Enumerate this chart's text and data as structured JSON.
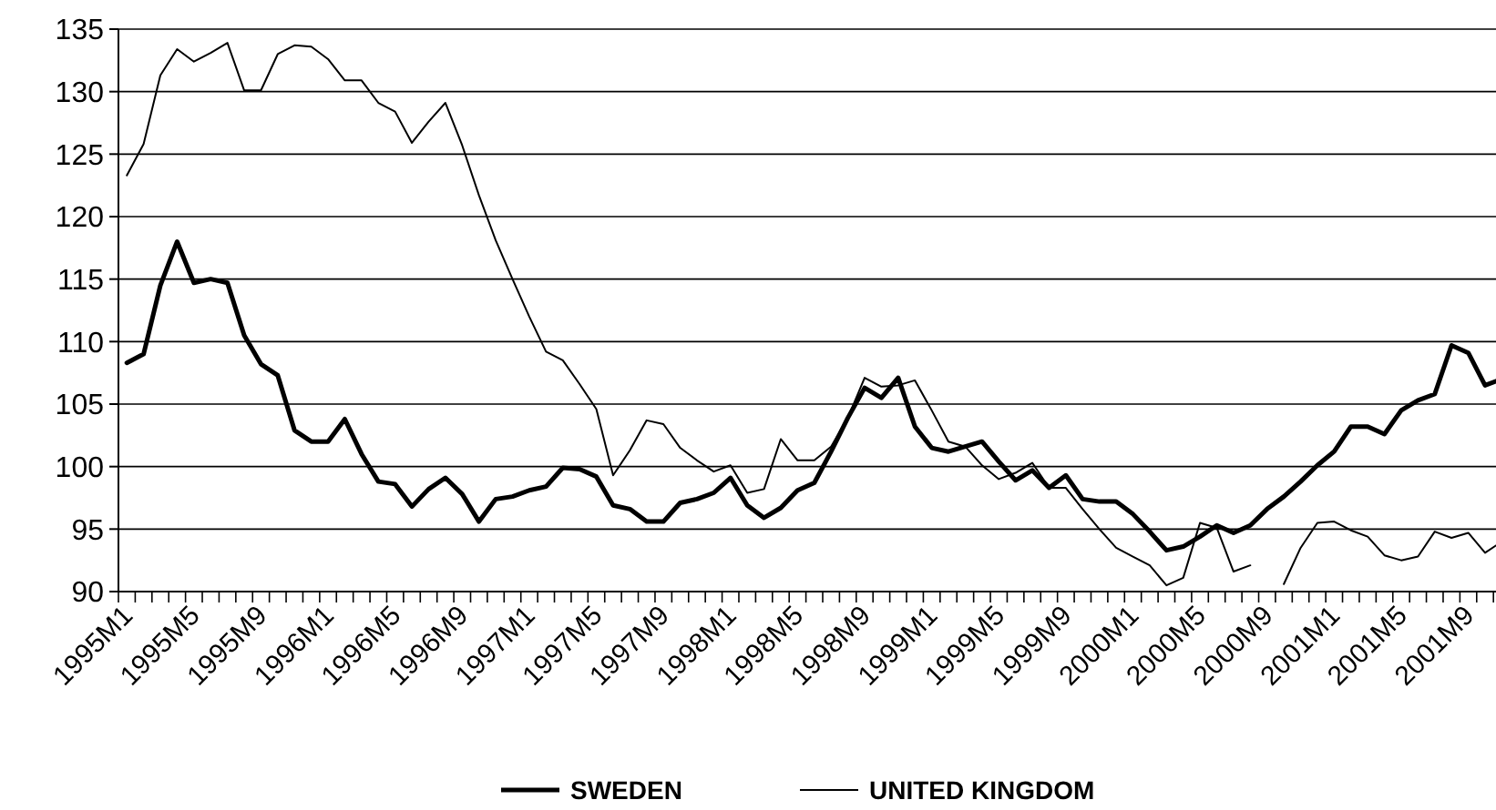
{
  "chart_data": {
    "type": "line",
    "categories": [
      "1995M1",
      null,
      null,
      null,
      "1995M5",
      null,
      null,
      null,
      "1995M9",
      null,
      null,
      null,
      "1996M1",
      null,
      null,
      null,
      "1996M5",
      null,
      null,
      null,
      "1996M9",
      null,
      null,
      null,
      "1997M1",
      null,
      null,
      null,
      "1997M5",
      null,
      null,
      null,
      "1997M9",
      null,
      null,
      null,
      "1998M1",
      null,
      null,
      null,
      "1998M5",
      null,
      null,
      null,
      "1998M9",
      null,
      null,
      null,
      "1999M1",
      null,
      null,
      null,
      "1999M5",
      null,
      null,
      null,
      "1999M9",
      null,
      null,
      null,
      "2000M1",
      null,
      null,
      null,
      "2000M5",
      null,
      null,
      null,
      "2000M9",
      null,
      null,
      null,
      "2001M1",
      null,
      null,
      null,
      "2001M5",
      null,
      null,
      null,
      "2001M9",
      null,
      null,
      null
    ],
    "series": [
      {
        "name": "SWEDEN",
        "color": "#000000",
        "values": [
          108.3,
          109,
          114.5,
          118,
          114.7,
          115,
          114.7,
          110.5,
          108.2,
          107.3,
          102.9,
          102,
          102,
          103.8,
          101,
          98.8,
          98.6,
          96.8,
          98.2,
          99.1,
          97.8,
          95.6,
          97.4,
          97.6,
          98.1,
          98.4,
          99.9,
          99.8,
          99.2,
          96.9,
          96.6,
          95.6,
          95.6,
          97.1,
          97.4,
          97.9,
          99.1,
          96.9,
          95.9,
          96.7,
          98.1,
          98.7,
          101.2,
          103.9,
          106.3,
          105.5,
          107.1,
          103.2,
          101.5,
          101.2,
          101.6,
          102,
          100.4,
          98.9,
          99.7,
          98.3,
          99.3,
          97.4,
          97.2,
          97.2,
          96.2,
          94.8,
          93.3,
          93.6,
          94.4,
          95.3,
          94.7,
          95.3,
          96.6,
          97.6,
          98.8,
          100.1,
          101.2,
          103.2,
          103.2,
          102.6,
          104.5,
          105.3,
          105.8,
          109.7,
          109.1,
          106.5,
          107,
          null
        ]
      },
      {
        "name": "UNITED KINGDOM",
        "color": "#000000",
        "values": [
          123.3,
          125.8,
          131.3,
          133.4,
          132.4,
          133.1,
          133.9,
          130.1,
          130.1,
          133,
          133.7,
          133.6,
          132.6,
          130.9,
          130.9,
          129.1,
          128.4,
          125.9,
          127.6,
          129.1,
          125.7,
          121.7,
          118.1,
          115,
          112,
          109.2,
          108.5,
          106.6,
          104.6,
          99.3,
          101.3,
          103.7,
          103.4,
          101.5,
          100.5,
          99.6,
          100.1,
          97.9,
          98.2,
          102.2,
          100.5,
          100.5,
          101.6,
          103.9,
          107.1,
          106.4,
          106.5,
          106.9,
          104.5,
          102,
          101.6,
          100.1,
          99,
          99.5,
          100.3,
          98.3,
          98.3,
          96.6,
          95,
          93.5,
          92.8,
          92.1,
          90.5,
          91.1,
          95.5,
          95.1,
          91.6,
          92.1,
          null,
          90.6,
          93.5,
          95.5,
          95.6,
          94.9,
          94.4,
          92.9,
          92.5,
          92.8,
          94.8,
          94.3,
          94.7,
          93.1,
          94,
          null
        ]
      }
    ],
    "ylim": [
      90,
      135
    ],
    "yticks": [
      90,
      95,
      100,
      105,
      110,
      115,
      120,
      125,
      130,
      135
    ],
    "grid": "y",
    "legend": "bottom",
    "line_style": "solid",
    "marker": "none"
  }
}
